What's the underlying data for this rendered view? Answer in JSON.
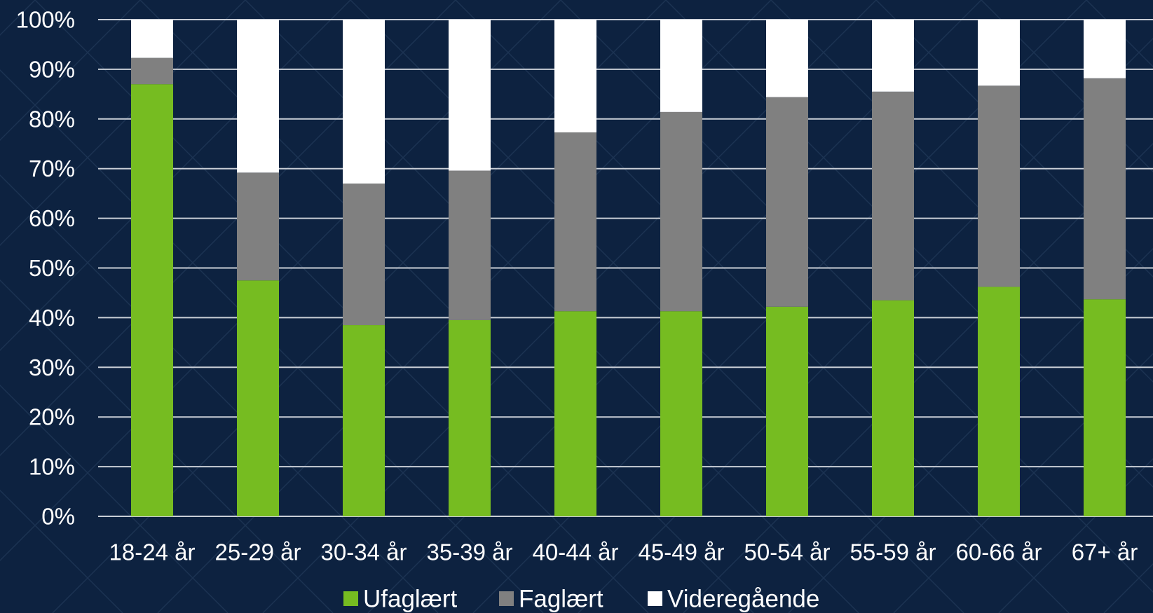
{
  "chart_data": {
    "type": "bar",
    "stacked": true,
    "categories": [
      "18-24 år",
      "25-29 år",
      "30-34 år",
      "35-39 år",
      "40-44 år",
      "45-49 år",
      "50-54 år",
      "55-59 år",
      "60-66 år",
      "67+ år"
    ],
    "series": [
      {
        "name": "Ufaglært",
        "color": "#76bc21",
        "values": [
          87,
          47.5,
          38.5,
          39.5,
          41.3,
          41.3,
          42.2,
          43.5,
          46.2,
          43.7
        ]
      },
      {
        "name": "Faglært",
        "color": "#808080",
        "values": [
          5.3,
          21.7,
          28.5,
          30.1,
          36.0,
          40.1,
          42.2,
          42.0,
          40.5,
          44.5
        ]
      },
      {
        "name": "Videregående",
        "color": "#ffffff",
        "values": [
          7.7,
          30.8,
          33.0,
          30.4,
          22.7,
          18.6,
          15.6,
          14.5,
          13.3,
          11.8
        ]
      }
    ],
    "yticks": [
      "0%",
      "10%",
      "20%",
      "30%",
      "40%",
      "50%",
      "60%",
      "70%",
      "80%",
      "90%",
      "100%"
    ],
    "ylim": [
      0,
      100
    ],
    "grid": true,
    "legend_position": "bottom",
    "title": "",
    "xlabel": "",
    "ylabel": "",
    "colors": {
      "background": "#0d2240",
      "gridline": "#c9ced6",
      "text": "#ffffff"
    }
  }
}
